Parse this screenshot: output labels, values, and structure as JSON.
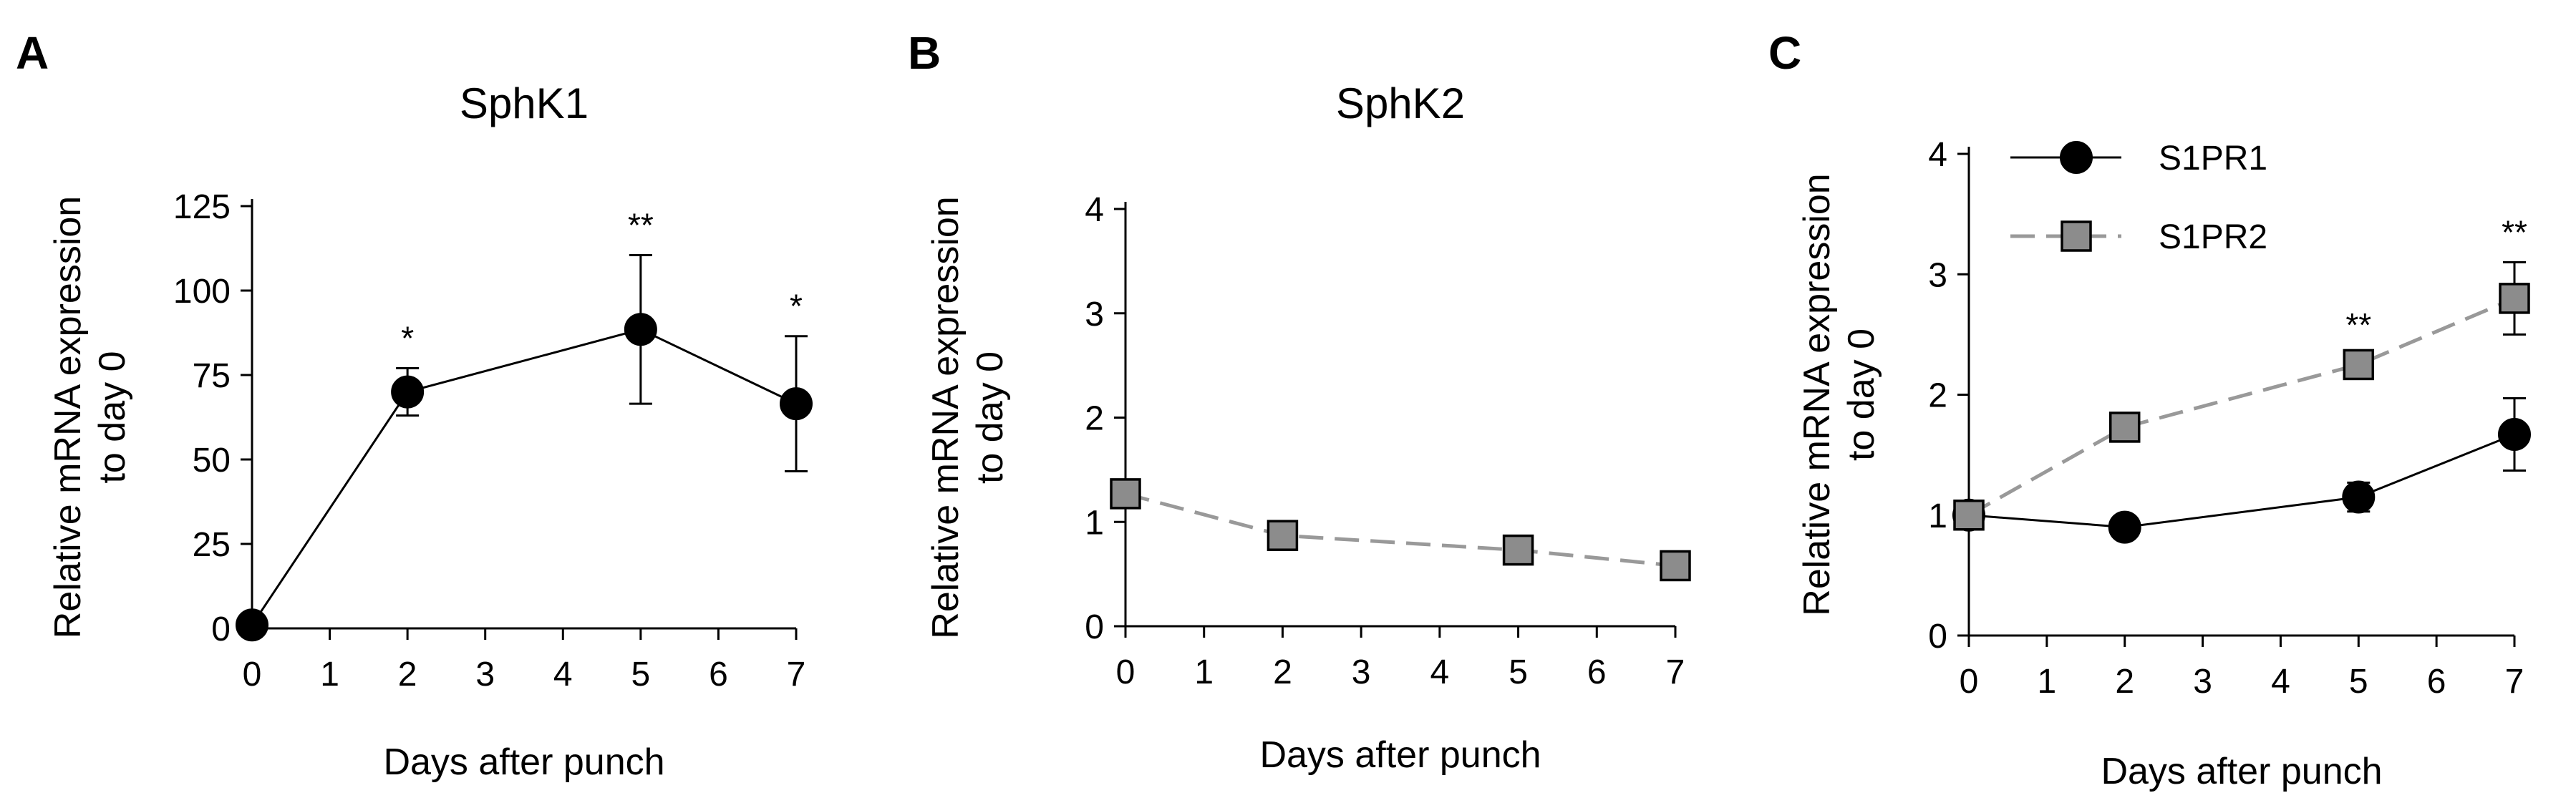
{
  "chart_data": [
    {
      "type": "line",
      "panel": "A",
      "title": "SphK1",
      "xlabel": "Days after punch",
      "ylabel": [
        "Relative mRNA expression",
        "to day 0"
      ],
      "xlim": [
        0,
        7
      ],
      "ylim": [
        0,
        125
      ],
      "xticks": [
        "0",
        "1",
        "2",
        "3",
        "4",
        "5",
        "6",
        "7"
      ],
      "yticks": [
        "0",
        "25",
        "50",
        "75",
        "100",
        "125"
      ],
      "series": [
        {
          "x": [
            0,
            2,
            5,
            7
          ],
          "y": [
            1,
            70,
            88.5,
            66.5
          ],
          "err": [
            0,
            7,
            22,
            20
          ],
          "marker": "circle",
          "color": "#000000",
          "fill": "#000000",
          "dash": false,
          "annotations": [
            "",
            "*",
            "**",
            "*"
          ]
        }
      ]
    },
    {
      "type": "line",
      "panel": "B",
      "title": "SphK2",
      "xlabel": "Days after punch",
      "ylabel": [
        "Relative mRNA expression",
        "to day 0"
      ],
      "xlim": [
        0,
        7
      ],
      "ylim": [
        0,
        4
      ],
      "xticks": [
        "0",
        "1",
        "2",
        "3",
        "4",
        "5",
        "6",
        "7"
      ],
      "yticks": [
        "0",
        "1",
        "2",
        "3",
        "4"
      ],
      "series": [
        {
          "x": [
            0,
            2,
            5,
            7
          ],
          "y": [
            1.27,
            0.87,
            0.73,
            0.58
          ],
          "err": [
            0,
            0,
            0,
            0
          ],
          "marker": "square",
          "color": "#999999",
          "fill": "#8c8c8c",
          "dash": true,
          "annotations": [
            "",
            "",
            "",
            ""
          ]
        }
      ]
    },
    {
      "type": "line",
      "panel": "C",
      "title": "",
      "xlabel": "Days after punch",
      "ylabel": [
        "Relative mRNA expression",
        "to day 0"
      ],
      "xlim": [
        0,
        7
      ],
      "ylim": [
        0,
        4
      ],
      "xticks": [
        "0",
        "1",
        "2",
        "3",
        "4",
        "5",
        "6",
        "7"
      ],
      "yticks": [
        "0",
        "1",
        "2",
        "3",
        "4"
      ],
      "legend": "top-left",
      "series": [
        {
          "name": "S1PR1",
          "x": [
            0,
            2,
            5,
            7
          ],
          "y": [
            1.0,
            0.9,
            1.15,
            1.67
          ],
          "err": [
            0,
            0,
            0.12,
            0.3
          ],
          "marker": "circle",
          "color": "#000000",
          "fill": "#000000",
          "dash": false,
          "annotations": [
            "",
            "",
            "",
            ""
          ]
        },
        {
          "name": "S1PR2",
          "x": [
            0,
            2,
            5,
            7
          ],
          "y": [
            1.0,
            1.73,
            2.25,
            2.8
          ],
          "err": [
            0,
            0,
            0.08,
            0.3
          ],
          "marker": "square",
          "color": "#999999",
          "fill": "#8c8c8c",
          "dash": true,
          "annotations": [
            "",
            "",
            "**",
            "**"
          ]
        }
      ]
    }
  ]
}
